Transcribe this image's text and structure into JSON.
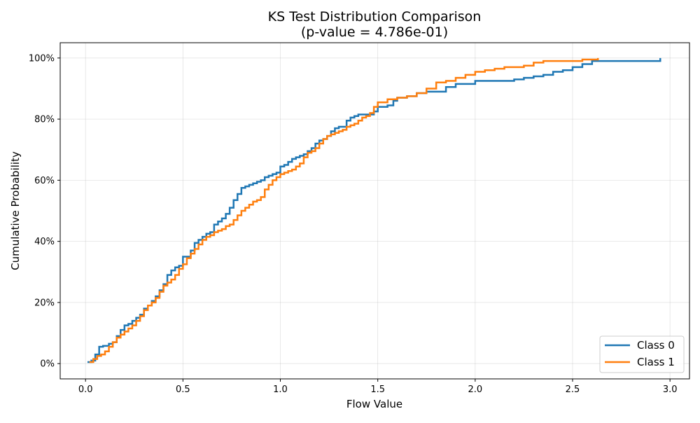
{
  "chart_data": {
    "type": "line",
    "title": "KS Test Distribution Comparison",
    "subtitle": "(p-value = 4.786e-01)",
    "xlabel": "Flow Value",
    "ylabel": "Cumulative Probability",
    "xlim": [
      -0.13,
      3.1
    ],
    "ylim": [
      -0.05,
      1.05
    ],
    "xticks": [
      0.0,
      0.5,
      1.0,
      1.5,
      2.0,
      2.5,
      3.0
    ],
    "xtick_labels": [
      "0.0",
      "0.5",
      "1.0",
      "1.5",
      "2.0",
      "2.5",
      "3.0"
    ],
    "yticks": [
      0,
      0.2,
      0.4,
      0.6,
      0.8,
      1.0
    ],
    "ytick_labels": [
      "0%",
      "20%",
      "40%",
      "60%",
      "80%",
      "100%"
    ],
    "grid": true,
    "legend_position": "bottom-right",
    "series": [
      {
        "name": "Class 0",
        "color": "#1f77b4",
        "step": true,
        "x": [
          0.01,
          0.03,
          0.05,
          0.07,
          0.09,
          0.12,
          0.14,
          0.16,
          0.18,
          0.2,
          0.22,
          0.24,
          0.26,
          0.28,
          0.3,
          0.32,
          0.34,
          0.36,
          0.38,
          0.4,
          0.42,
          0.44,
          0.46,
          0.48,
          0.5,
          0.52,
          0.54,
          0.56,
          0.58,
          0.6,
          0.62,
          0.64,
          0.66,
          0.68,
          0.7,
          0.72,
          0.74,
          0.76,
          0.78,
          0.8,
          0.82,
          0.84,
          0.86,
          0.88,
          0.9,
          0.92,
          0.94,
          0.96,
          0.98,
          1.0,
          1.02,
          1.04,
          1.06,
          1.08,
          1.1,
          1.12,
          1.14,
          1.16,
          1.18,
          1.2,
          1.22,
          1.24,
          1.26,
          1.28,
          1.3,
          1.32,
          1.34,
          1.36,
          1.38,
          1.4,
          1.45,
          1.48,
          1.5,
          1.55,
          1.58,
          1.6,
          1.65,
          1.7,
          1.75,
          1.8,
          1.85,
          1.9,
          1.95,
          2.0,
          2.1,
          2.2,
          2.25,
          2.3,
          2.35,
          2.4,
          2.45,
          2.5,
          2.55,
          2.6,
          2.65,
          2.7,
          2.8,
          2.95
        ],
        "y": [
          0.005,
          0.01,
          0.03,
          0.055,
          0.058,
          0.065,
          0.07,
          0.09,
          0.11,
          0.125,
          0.13,
          0.14,
          0.15,
          0.16,
          0.18,
          0.19,
          0.205,
          0.22,
          0.24,
          0.26,
          0.29,
          0.305,
          0.315,
          0.32,
          0.35,
          0.35,
          0.37,
          0.395,
          0.405,
          0.415,
          0.425,
          0.43,
          0.455,
          0.465,
          0.475,
          0.49,
          0.51,
          0.535,
          0.555,
          0.575,
          0.58,
          0.585,
          0.59,
          0.595,
          0.6,
          0.61,
          0.615,
          0.62,
          0.625,
          0.645,
          0.65,
          0.66,
          0.67,
          0.675,
          0.68,
          0.685,
          0.695,
          0.705,
          0.72,
          0.73,
          0.735,
          0.745,
          0.76,
          0.77,
          0.775,
          0.775,
          0.795,
          0.805,
          0.81,
          0.815,
          0.815,
          0.825,
          0.84,
          0.845,
          0.86,
          0.87,
          0.875,
          0.885,
          0.89,
          0.89,
          0.905,
          0.915,
          0.915,
          0.925,
          0.925,
          0.93,
          0.935,
          0.94,
          0.945,
          0.955,
          0.96,
          0.97,
          0.98,
          0.99,
          0.99,
          0.99,
          0.99,
          1.0
        ]
      },
      {
        "name": "Class 1",
        "color": "#ff7f0e",
        "step": true,
        "x": [
          0.02,
          0.04,
          0.06,
          0.08,
          0.1,
          0.12,
          0.14,
          0.16,
          0.18,
          0.2,
          0.22,
          0.24,
          0.26,
          0.28,
          0.3,
          0.32,
          0.34,
          0.36,
          0.38,
          0.4,
          0.42,
          0.44,
          0.46,
          0.48,
          0.5,
          0.52,
          0.54,
          0.56,
          0.58,
          0.6,
          0.62,
          0.64,
          0.66,
          0.68,
          0.7,
          0.72,
          0.74,
          0.76,
          0.78,
          0.8,
          0.82,
          0.84,
          0.86,
          0.88,
          0.9,
          0.92,
          0.94,
          0.96,
          0.98,
          1.0,
          1.02,
          1.04,
          1.06,
          1.08,
          1.1,
          1.12,
          1.14,
          1.16,
          1.18,
          1.2,
          1.22,
          1.24,
          1.26,
          1.28,
          1.3,
          1.32,
          1.34,
          1.36,
          1.38,
          1.4,
          1.42,
          1.44,
          1.46,
          1.48,
          1.5,
          1.55,
          1.6,
          1.65,
          1.7,
          1.75,
          1.8,
          1.85,
          1.9,
          1.95,
          2.0,
          2.05,
          2.1,
          2.15,
          2.2,
          2.25,
          2.3,
          2.35,
          2.4,
          2.45,
          2.5,
          2.55,
          2.63
        ],
        "y": [
          0.005,
          0.015,
          0.025,
          0.03,
          0.04,
          0.055,
          0.07,
          0.085,
          0.095,
          0.105,
          0.115,
          0.125,
          0.14,
          0.155,
          0.175,
          0.19,
          0.2,
          0.215,
          0.235,
          0.255,
          0.265,
          0.275,
          0.29,
          0.31,
          0.325,
          0.345,
          0.36,
          0.375,
          0.39,
          0.405,
          0.415,
          0.42,
          0.43,
          0.435,
          0.44,
          0.45,
          0.455,
          0.47,
          0.485,
          0.5,
          0.51,
          0.52,
          0.53,
          0.535,
          0.545,
          0.57,
          0.585,
          0.6,
          0.61,
          0.62,
          0.625,
          0.63,
          0.635,
          0.645,
          0.655,
          0.675,
          0.69,
          0.695,
          0.705,
          0.72,
          0.735,
          0.745,
          0.75,
          0.755,
          0.76,
          0.765,
          0.775,
          0.78,
          0.785,
          0.795,
          0.805,
          0.81,
          0.82,
          0.84,
          0.855,
          0.865,
          0.87,
          0.875,
          0.885,
          0.9,
          0.92,
          0.925,
          0.935,
          0.945,
          0.955,
          0.96,
          0.965,
          0.97,
          0.97,
          0.975,
          0.985,
          0.99,
          0.99,
          0.99,
          0.99,
          0.995,
          1.0
        ]
      }
    ]
  }
}
